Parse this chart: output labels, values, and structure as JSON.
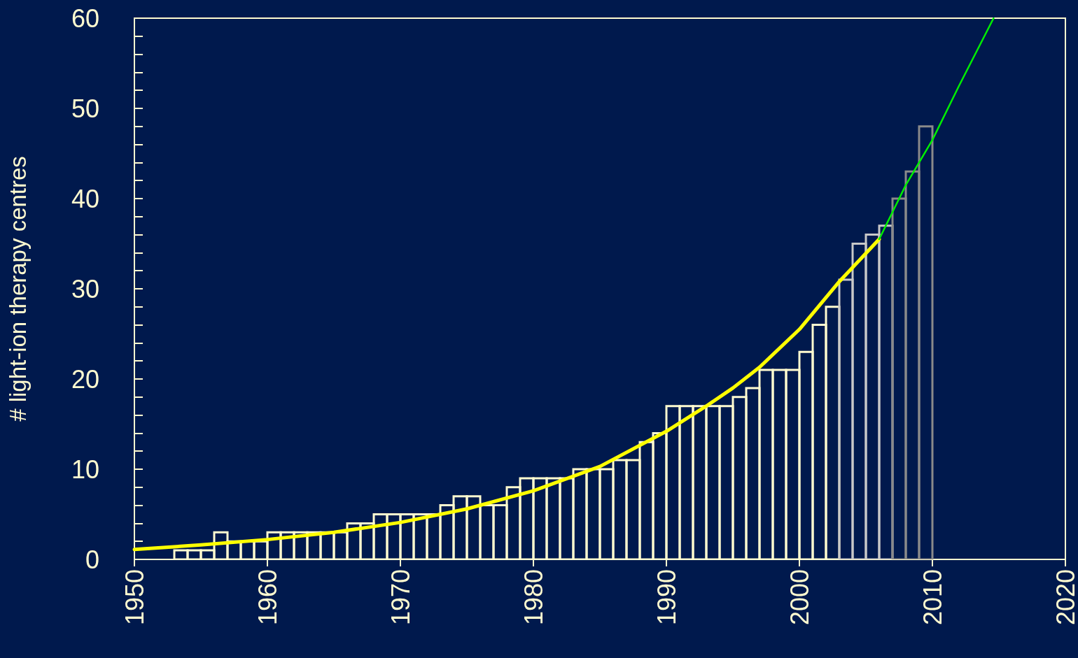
{
  "chart_data": {
    "type": "histogram",
    "ylabel": "# light-ion therapy centres",
    "bins": [
      1953,
      1954,
      1955,
      1956,
      1957,
      1958,
      1959,
      1960,
      1961,
      1962,
      1963,
      1964,
      1965,
      1966,
      1967,
      1968,
      1969,
      1970,
      1971,
      1972,
      1973,
      1974,
      1975,
      1976,
      1977,
      1978,
      1979,
      1980,
      1981,
      1982,
      1983,
      1984,
      1985,
      1986,
      1987,
      1988,
      1989,
      1990,
      1991,
      1992,
      1993,
      1994,
      1995,
      1996,
      1997,
      1998,
      1999,
      2000,
      2001,
      2002,
      2003,
      2004,
      2005,
      2006,
      2007,
      2008,
      2009,
      2010
    ],
    "values": [
      1,
      1,
      1,
      3,
      2,
      2,
      2,
      3,
      3,
      3,
      3,
      3,
      3,
      4,
      4,
      5,
      5,
      5,
      5,
      5,
      6,
      7,
      7,
      6,
      6,
      8,
      9,
      9,
      9,
      9,
      10,
      10,
      10,
      11,
      11,
      13,
      14,
      17,
      17,
      17,
      17,
      17,
      18,
      19,
      21,
      21,
      21,
      23,
      26,
      28,
      31,
      35,
      36,
      37,
      40,
      43,
      48
    ],
    "colors": [
      "#fffbd0",
      "#fffbd0",
      "#fffbd0",
      "#fffbd0",
      "#fffbd0",
      "#fffbd0",
      "#fffbd0",
      "#fffbd0",
      "#fffbd0",
      "#fffbd0",
      "#fffbd0",
      "#fffbd0",
      "#fffbd0",
      "#fffbd0",
      "#fffbd0",
      "#fffbd0",
      "#fffbd0",
      "#fffbd0",
      "#fffbd0",
      "#fffbd0",
      "#fffbd0",
      "#fffbd0",
      "#fffbd0",
      "#fffbd0",
      "#fffbd0",
      "#fffbd0",
      "#fffbd0",
      "#fffbd0",
      "#fffbd0",
      "#fffbd0",
      "#fffbd0",
      "#fffbd0",
      "#fffbd0",
      "#fffbd0",
      "#fffbd0",
      "#fffbd0",
      "#fffbd0",
      "#fffbd0",
      "#fffbd0",
      "#fffbd0",
      "#fffbd0",
      "#fffbd0",
      "#fffbd0",
      "#fffbd0",
      "#fffbd0",
      "#fffbd0",
      "#fffbd0",
      "#fffbd0",
      "#fffbd0",
      "#fffbd0",
      "#c8c8c8",
      "#c8c8c8",
      "#c8c8c8",
      "#c8c8c8",
      "#8a8a8a",
      "#8a8a8a",
      "#8a8a8a"
    ],
    "series": [
      {
        "type": "line",
        "color": "#ffff00",
        "x": [
          1950,
          1955,
          1960,
          1965,
          1970,
          1975,
          1980,
          1985,
          1990,
          1993,
          1995,
          1997,
          2000,
          2003,
          2006
        ],
        "values": [
          1.1,
          1.6,
          2.2,
          3.0,
          4.1,
          5.6,
          7.6,
          10.3,
          14.2,
          17.0,
          19.0,
          21.3,
          25.5,
          30.8,
          35.5
        ]
      },
      {
        "type": "line",
        "color": "#00ee00",
        "x": [
          2006,
          2008,
          2010,
          2012,
          2014.6
        ],
        "values": [
          35.5,
          41.5,
          46.5,
          52.5,
          60
        ]
      }
    ],
    "xlim": [
      1950,
      2020
    ],
    "xticks": [
      1950,
      1960,
      1970,
      1980,
      1990,
      2000,
      2010,
      2020
    ],
    "ylim": [
      0,
      60
    ],
    "yticks": [
      0,
      {
        "value": 2,
        "label": null
      },
      {
        "value": 4,
        "label": null
      },
      {
        "value": 6,
        "label": null
      },
      {
        "value": 8,
        "label": null
      },
      10,
      {
        "value": 12,
        "label": null
      },
      {
        "value": 14,
        "label": null
      },
      {
        "value": 16,
        "label": null
      },
      {
        "value": 18,
        "label": null
      },
      20,
      {
        "value": 22,
        "label": null
      },
      {
        "value": 24,
        "label": null
      },
      {
        "value": 26,
        "label": null
      },
      {
        "value": 28,
        "label": null
      },
      30,
      {
        "value": 32,
        "label": null
      },
      {
        "value": 34,
        "label": null
      },
      {
        "value": 36,
        "label": null
      },
      {
        "value": 38,
        "label": null
      },
      40,
      {
        "value": 42,
        "label": null
      },
      {
        "value": 44,
        "label": null
      },
      {
        "value": 46,
        "label": null
      },
      {
        "value": 48,
        "label": null
      },
      50,
      {
        "value": 52,
        "label": null
      },
      {
        "value": 54,
        "label": null
      },
      {
        "value": 56,
        "label": null
      },
      {
        "value": 58,
        "label": null
      },
      60
    ],
    "grid": false,
    "marker": "none"
  }
}
